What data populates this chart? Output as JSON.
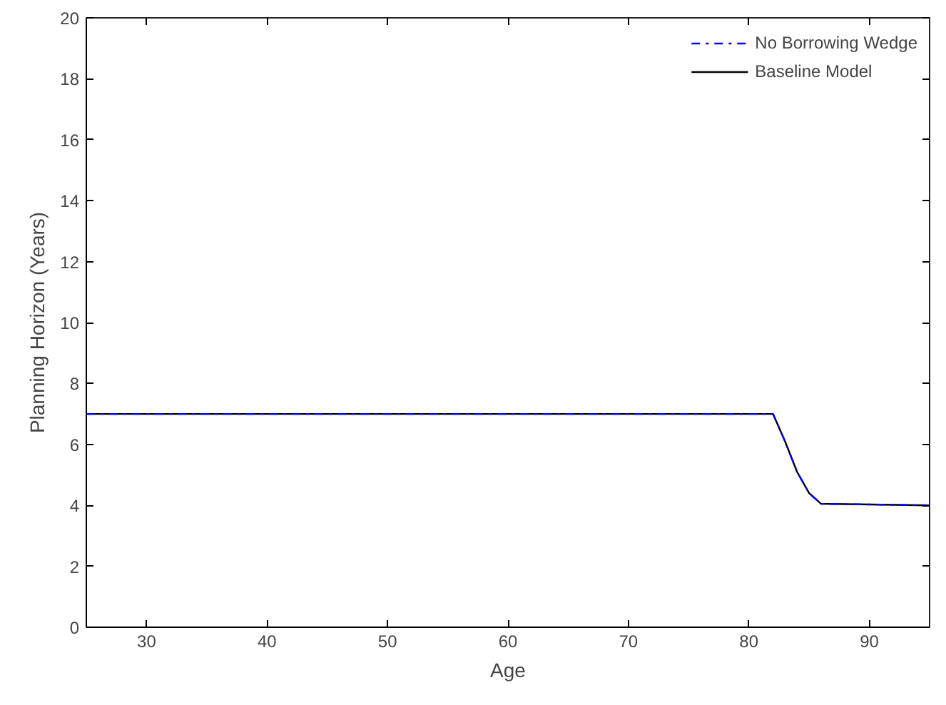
{
  "chart_data": {
    "type": "line",
    "xlabel": "Age",
    "ylabel": "Planning Horizon (Years)",
    "xlim": [
      25,
      95
    ],
    "ylim": [
      0,
      20
    ],
    "xticks": [
      30,
      40,
      50,
      60,
      70,
      80,
      90
    ],
    "yticks": [
      0,
      2,
      4,
      6,
      8,
      10,
      12,
      14,
      16,
      18,
      20
    ],
    "grid": false,
    "legend": "top right",
    "marker": "none",
    "series": [
      {
        "name": "No Borrowing Wedge",
        "color": "#0000ff",
        "line_style": "dashdot",
        "x": [
          25,
          82,
          83,
          84,
          85,
          86,
          95
        ],
        "values": [
          7,
          7,
          6.1,
          5.1,
          4.4,
          4.05,
          4
        ]
      },
      {
        "name": "Baseline Model",
        "color": "#000000",
        "line_style": "solid",
        "x": [
          25,
          82,
          83,
          84,
          85,
          86,
          95
        ],
        "values": [
          7,
          7,
          6.1,
          5.1,
          4.4,
          4.05,
          4
        ]
      }
    ]
  }
}
